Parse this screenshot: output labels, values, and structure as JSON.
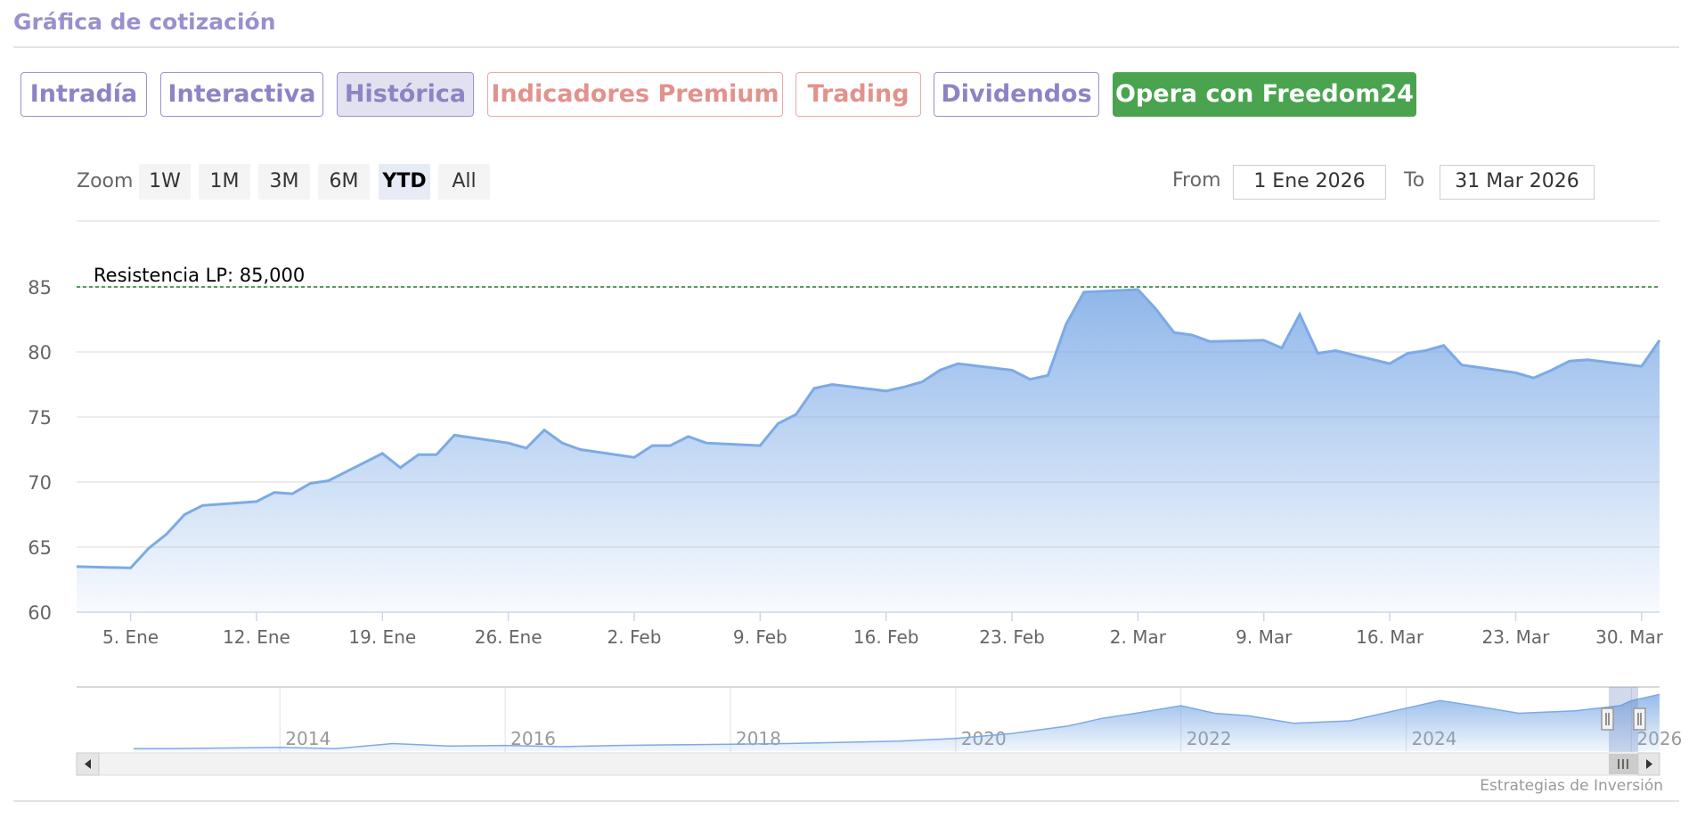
{
  "header": {
    "title": "Gráfica de cotización"
  },
  "tabs": [
    {
      "label": "Intradía",
      "style": "default"
    },
    {
      "label": "Interactiva",
      "style": "default"
    },
    {
      "label": "Histórica",
      "style": "active"
    },
    {
      "label": "Indicadores Premium",
      "style": "red"
    },
    {
      "label": "Trading",
      "style": "red"
    },
    {
      "label": "Dividendos",
      "style": "default"
    },
    {
      "label": "Opera con Freedom24",
      "style": "green"
    }
  ],
  "zoom": {
    "label": "Zoom",
    "buttons": [
      "1W",
      "1M",
      "3M",
      "6M",
      "YTD",
      "All"
    ],
    "selected": "YTD"
  },
  "range": {
    "from_label": "From",
    "from_value": "1 Ene 2026",
    "to_label": "To",
    "to_value": "31 Mar 2026"
  },
  "colors": {
    "series": "#7caae6",
    "resistance": "#2a7a2a",
    "tab_text": "#8d84c6",
    "tab_red": "#e2928c",
    "tab_green": "#4aa44f"
  },
  "credits": "Estrategias de Inversión",
  "chart_data": {
    "type": "area",
    "ylim": [
      60,
      85
    ],
    "y_ticks": [
      60,
      65,
      70,
      75,
      80,
      85
    ],
    "x_ticks": [
      {
        "label": "5. Ene",
        "date": "2026-01-05"
      },
      {
        "label": "12. Ene",
        "date": "2026-01-12"
      },
      {
        "label": "19. Ene",
        "date": "2026-01-19"
      },
      {
        "label": "26. Ene",
        "date": "2026-01-26"
      },
      {
        "label": "2. Feb",
        "date": "2026-02-02"
      },
      {
        "label": "9. Feb",
        "date": "2026-02-09"
      },
      {
        "label": "16. Feb",
        "date": "2026-02-16"
      },
      {
        "label": "23. Feb",
        "date": "2026-02-23"
      },
      {
        "label": "2. Mar",
        "date": "2026-03-02"
      },
      {
        "label": "9. Mar",
        "date": "2026-03-09"
      },
      {
        "label": "16. Mar",
        "date": "2026-03-16"
      },
      {
        "label": "23. Mar",
        "date": "2026-03-23"
      },
      {
        "label": "30. Mar",
        "date": "2026-03-30"
      }
    ],
    "resistance": {
      "label": "Resistencia LP: 85,000",
      "value": 85
    },
    "series": [
      {
        "x": [
          "2026-01-02",
          "2026-01-05",
          "2026-01-06",
          "2026-01-07",
          "2026-01-08",
          "2026-01-09",
          "2026-01-12",
          "2026-01-13",
          "2026-01-14",
          "2026-01-15",
          "2026-01-16",
          "2026-01-19",
          "2026-01-20",
          "2026-01-21",
          "2026-01-22",
          "2026-01-23",
          "2026-01-26",
          "2026-01-27",
          "2026-01-28",
          "2026-01-29",
          "2026-01-30",
          "2026-02-02",
          "2026-02-03",
          "2026-02-04",
          "2026-02-05",
          "2026-02-06",
          "2026-02-09",
          "2026-02-10",
          "2026-02-11",
          "2026-02-12",
          "2026-02-13",
          "2026-02-16",
          "2026-02-17",
          "2026-02-18",
          "2026-02-19",
          "2026-02-20",
          "2026-02-23",
          "2026-02-24",
          "2026-02-25",
          "2026-02-26",
          "2026-02-27",
          "2026-03-02",
          "2026-03-03",
          "2026-03-04",
          "2026-03-05",
          "2026-03-06",
          "2026-03-09",
          "2026-03-10",
          "2026-03-11",
          "2026-03-12",
          "2026-03-13",
          "2026-03-16",
          "2026-03-17",
          "2026-03-18",
          "2026-03-19",
          "2026-03-20",
          "2026-03-23",
          "2026-03-24",
          "2026-03-25",
          "2026-03-26",
          "2026-03-27",
          "2026-03-30",
          "2026-03-31"
        ],
        "values": [
          63.5,
          63.4,
          64.9,
          66.0,
          67.5,
          68.2,
          68.5,
          69.2,
          69.1,
          69.9,
          70.1,
          72.2,
          71.1,
          72.1,
          72.1,
          73.6,
          73.0,
          72.6,
          74.0,
          73.0,
          72.5,
          71.9,
          72.8,
          72.8,
          73.5,
          73.0,
          72.8,
          74.5,
          75.2,
          77.2,
          77.5,
          77.0,
          77.3,
          77.7,
          78.6,
          79.1,
          78.6,
          77.9,
          78.2,
          82.1,
          84.6,
          84.8,
          83.3,
          81.5,
          81.3,
          80.8,
          80.9,
          80.3,
          82.9,
          79.9,
          80.1,
          79.1,
          79.9,
          80.1,
          80.5,
          79.0,
          78.4,
          78.0,
          78.6,
          79.3,
          79.4,
          78.9,
          80.9
        ]
      }
    ],
    "navigator": {
      "labels": [
        "2014",
        "2016",
        "2018",
        "2020",
        "2022",
        "2024",
        "2026"
      ],
      "x": [
        2012.7,
        2013.0,
        2013.5,
        2014.0,
        2014.5,
        2015.0,
        2015.5,
        2016.0,
        2016.5,
        2017.0,
        2017.5,
        2018.0,
        2018.5,
        2019.0,
        2019.5,
        2020.0,
        2020.5,
        2021.0,
        2021.3,
        2021.6,
        2022.0,
        2022.3,
        2022.6,
        2023.0,
        2023.5,
        2024.0,
        2024.3,
        2024.6,
        2025.0,
        2025.5,
        2025.9,
        2026.0,
        2026.25
      ],
      "values": [
        2,
        2,
        2.5,
        3,
        2,
        6,
        4,
        4.5,
        3.5,
        4.5,
        5,
        5.5,
        6,
        7,
        8,
        10,
        14,
        20,
        26,
        30,
        36,
        30,
        28,
        22,
        24,
        34,
        40,
        36,
        30,
        32,
        36,
        40,
        45
      ]
    }
  }
}
